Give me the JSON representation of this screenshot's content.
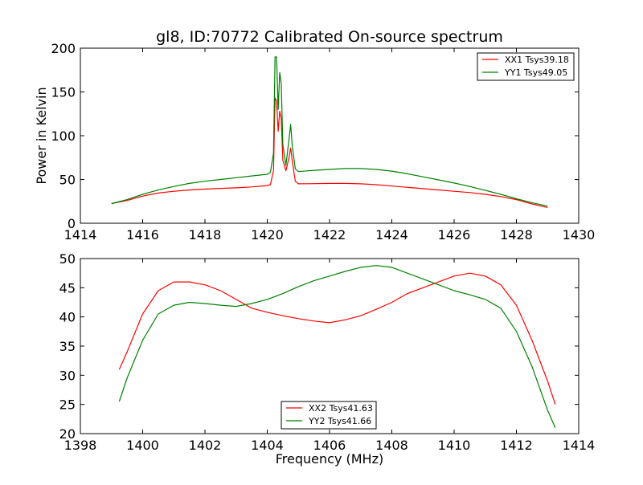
{
  "title": "gl8, ID:70772 Calibrated On-source spectrum",
  "colors": {
    "series_red": "#ff0000",
    "series_green": "#008000"
  },
  "chart_data": [
    {
      "type": "line",
      "title": "gl8, ID:70772 Calibrated On-source spectrum",
      "xlabel": "",
      "ylabel": "Power in Kelvin",
      "xlim": [
        1414,
        1430
      ],
      "ylim": [
        0,
        200
      ],
      "xticks": [
        "1414",
        "1416",
        "1418",
        "1420",
        "1422",
        "1424",
        "1426",
        "1428",
        "1430"
      ],
      "yticks": [
        "0",
        "50",
        "100",
        "150",
        "200"
      ],
      "grid": false,
      "legend": "top-right",
      "series": [
        {
          "name": "XX1 Tsys39.18",
          "color": "#ff0000",
          "points": [
            [
              1415.0,
              22.5
            ],
            [
              1415.5,
              26
            ],
            [
              1416.0,
              31
            ],
            [
              1416.5,
              34.5
            ],
            [
              1417.0,
              36.5
            ],
            [
              1417.5,
              38
            ],
            [
              1418.0,
              39
            ],
            [
              1418.5,
              39.8
            ],
            [
              1419.0,
              40.5
            ],
            [
              1419.5,
              41.5
            ],
            [
              1420.0,
              43
            ],
            [
              1420.1,
              44
            ],
            [
              1420.2,
              60
            ],
            [
              1420.25,
              143
            ],
            [
              1420.3,
              140
            ],
            [
              1420.35,
              105
            ],
            [
              1420.4,
              128
            ],
            [
              1420.45,
              120
            ],
            [
              1420.5,
              72
            ],
            [
              1420.6,
              60
            ],
            [
              1420.7,
              75
            ],
            [
              1420.75,
              86
            ],
            [
              1420.8,
              72
            ],
            [
              1420.9,
              48
            ],
            [
              1421.0,
              45
            ],
            [
              1421.5,
              45.2
            ],
            [
              1422.0,
              45.5
            ],
            [
              1422.5,
              45.5
            ],
            [
              1423.0,
              45
            ],
            [
              1423.5,
              44
            ],
            [
              1424.0,
              42.5
            ],
            [
              1424.5,
              41
            ],
            [
              1425.0,
              39.5
            ],
            [
              1425.5,
              38
            ],
            [
              1426.0,
              36.5
            ],
            [
              1426.5,
              35
            ],
            [
              1427.0,
              33
            ],
            [
              1427.5,
              30.5
            ],
            [
              1428.0,
              27
            ],
            [
              1428.5,
              22
            ],
            [
              1429.0,
              18
            ]
          ]
        },
        {
          "name": "YY1 Tsys49.05",
          "color": "#008000",
          "points": [
            [
              1415.0,
              22.5
            ],
            [
              1415.5,
              27
            ],
            [
              1416.0,
              33
            ],
            [
              1416.5,
              38
            ],
            [
              1417.0,
              42
            ],
            [
              1417.5,
              45.5
            ],
            [
              1418.0,
              48
            ],
            [
              1418.5,
              50
            ],
            [
              1419.0,
              52
            ],
            [
              1419.5,
              54
            ],
            [
              1420.0,
              56
            ],
            [
              1420.1,
              58
            ],
            [
              1420.2,
              80
            ],
            [
              1420.25,
              190
            ],
            [
              1420.3,
              190
            ],
            [
              1420.35,
              130
            ],
            [
              1420.4,
              172
            ],
            [
              1420.45,
              160
            ],
            [
              1420.5,
              90
            ],
            [
              1420.6,
              66
            ],
            [
              1420.7,
              96
            ],
            [
              1420.75,
              113
            ],
            [
              1420.8,
              90
            ],
            [
              1420.9,
              62
            ],
            [
              1421.0,
              59
            ],
            [
              1421.5,
              60.5
            ],
            [
              1422.0,
              61.5
            ],
            [
              1422.5,
              62.5
            ],
            [
              1423.0,
              62.5
            ],
            [
              1423.5,
              61.5
            ],
            [
              1424.0,
              59.5
            ],
            [
              1424.5,
              56.5
            ],
            [
              1425.0,
              53
            ],
            [
              1425.5,
              49.5
            ],
            [
              1426.0,
              46
            ],
            [
              1426.5,
              42
            ],
            [
              1427.0,
              37.5
            ],
            [
              1427.5,
              33
            ],
            [
              1428.0,
              28
            ],
            [
              1428.5,
              23.5
            ],
            [
              1429.0,
              19.5
            ]
          ]
        }
      ]
    },
    {
      "type": "line",
      "title": "",
      "xlabel": "Frequency (MHz)",
      "ylabel": "",
      "xlim": [
        1398,
        1414
      ],
      "ylim": [
        20,
        50
      ],
      "xticks": [
        "1398",
        "1400",
        "1402",
        "1404",
        "1406",
        "1408",
        "1410",
        "1412",
        "1414"
      ],
      "yticks": [
        "20",
        "25",
        "30",
        "35",
        "40",
        "45",
        "50"
      ],
      "grid": false,
      "legend": "bottom-center",
      "series": [
        {
          "name": "XX2 Tsys41.63",
          "color": "#ff0000",
          "points": [
            [
              1399.25,
              31
            ],
            [
              1399.5,
              34
            ],
            [
              1400.0,
              40.5
            ],
            [
              1400.5,
              44.5
            ],
            [
              1401.0,
              46
            ],
            [
              1401.5,
              46
            ],
            [
              1402.0,
              45.5
            ],
            [
              1402.5,
              44.5
            ],
            [
              1403.0,
              43
            ],
            [
              1403.5,
              41.5
            ],
            [
              1404.0,
              40.8
            ],
            [
              1404.5,
              40.2
            ],
            [
              1405.0,
              39.7
            ],
            [
              1405.5,
              39.3
            ],
            [
              1406.0,
              39
            ],
            [
              1406.5,
              39.5
            ],
            [
              1407.0,
              40.2
            ],
            [
              1407.5,
              41.3
            ],
            [
              1408.0,
              42.5
            ],
            [
              1408.5,
              44
            ],
            [
              1409.0,
              45
            ],
            [
              1409.5,
              46
            ],
            [
              1410.0,
              47
            ],
            [
              1410.5,
              47.5
            ],
            [
              1411.0,
              47
            ],
            [
              1411.5,
              45.5
            ],
            [
              1412.0,
              42
            ],
            [
              1412.5,
              36
            ],
            [
              1413.0,
              29
            ],
            [
              1413.25,
              25
            ]
          ]
        },
        {
          "name": "YY2 Tsys41.66",
          "color": "#008000",
          "points": [
            [
              1399.25,
              25.5
            ],
            [
              1399.5,
              29.5
            ],
            [
              1400.0,
              36
            ],
            [
              1400.5,
              40.5
            ],
            [
              1401.0,
              42
            ],
            [
              1401.5,
              42.5
            ],
            [
              1402.0,
              42.3
            ],
            [
              1402.5,
              42
            ],
            [
              1403.0,
              41.8
            ],
            [
              1403.5,
              42.3
            ],
            [
              1404.0,
              43
            ],
            [
              1404.5,
              44
            ],
            [
              1405.0,
              45.2
            ],
            [
              1405.5,
              46.2
            ],
            [
              1406.0,
              47
            ],
            [
              1406.5,
              47.8
            ],
            [
              1407.0,
              48.5
            ],
            [
              1407.5,
              48.8
            ],
            [
              1408.0,
              48.5
            ],
            [
              1408.5,
              47.5
            ],
            [
              1409.0,
              46.5
            ],
            [
              1409.5,
              45.5
            ],
            [
              1410.0,
              44.5
            ],
            [
              1410.5,
              43.8
            ],
            [
              1411.0,
              43
            ],
            [
              1411.5,
              41.5
            ],
            [
              1412.0,
              37.5
            ],
            [
              1412.5,
              31.5
            ],
            [
              1413.0,
              24
            ],
            [
              1413.25,
              21
            ]
          ]
        }
      ]
    }
  ]
}
